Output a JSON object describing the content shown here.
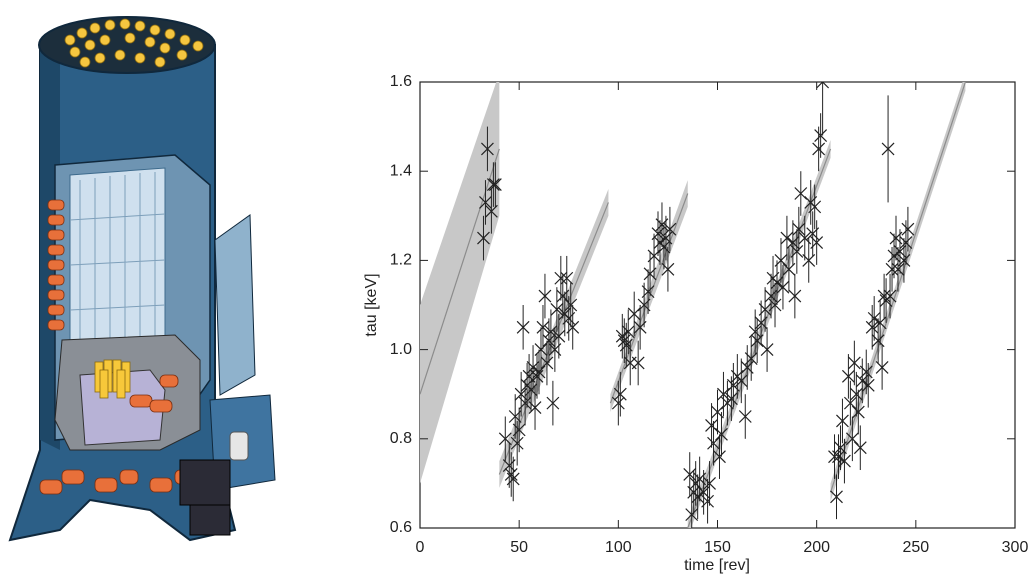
{
  "chart_data": {
    "type": "scatter",
    "xlabel": "time [rev]",
    "ylabel": "tau [keV]",
    "xlim": [
      0,
      300
    ],
    "ylim": [
      0.6,
      1.6
    ],
    "xticks": [
      0,
      50,
      100,
      150,
      200,
      250,
      300
    ],
    "yticks": [
      0.6,
      0.8,
      {
        "value": 1,
        "label": "1.0"
      },
      1.2,
      1.4,
      1.6
    ],
    "color": "#222222",
    "fit_color": "#8c8c8c",
    "band_color": "#c8c8c8",
    "series": [
      {
        "x": [
          32,
          33,
          34,
          36,
          37,
          38
        ],
        "values": [
          1.25,
          1.33,
          1.45,
          1.31,
          1.37,
          1.37
        ],
        "yerr": 0.05
      },
      {
        "x": [
          43,
          45,
          46,
          47,
          48,
          49,
          50,
          51,
          52,
          53,
          54,
          55,
          56,
          57,
          58,
          59,
          60,
          61,
          62,
          63,
          64,
          65,
          66,
          67,
          68,
          69,
          70,
          71,
          72,
          73,
          74,
          75,
          76,
          77
        ],
        "values": [
          0.8,
          0.74,
          0.72,
          0.71,
          0.85,
          0.79,
          0.82,
          0.9,
          1.05,
          0.88,
          0.92,
          0.94,
          0.91,
          0.96,
          0.87,
          0.94,
          0.95,
          1.0,
          1.05,
          1.12,
          0.97,
          1.02,
          1.04,
          0.88,
          1.0,
          1.09,
          1.03,
          1.16,
          1.12,
          1.08,
          1.16,
          1.07,
          1.1,
          1.05
        ],
        "yerr": 0.05
      },
      {
        "x": [
          100,
          101,
          102,
          103,
          104,
          105,
          106,
          108,
          110,
          111,
          113,
          115,
          116,
          118,
          120,
          121,
          122,
          123,
          124,
          125,
          126
        ],
        "values": [
          0.88,
          0.9,
          1.03,
          1.02,
          1.01,
          1.04,
          0.97,
          1.08,
          0.97,
          1.05,
          1.1,
          1.13,
          1.17,
          1.21,
          1.26,
          1.24,
          1.28,
          1.23,
          1.25,
          1.18,
          1.27
        ],
        "yerr": 0.05
      },
      {
        "x": [
          136,
          137,
          138,
          139,
          140,
          141,
          143,
          145,
          146,
          147,
          148,
          150,
          151,
          152,
          153,
          155,
          157,
          158,
          160,
          162,
          164,
          165,
          167,
          169,
          170,
          172,
          174,
          175,
          177,
          178,
          179,
          180,
          182,
          183,
          185,
          186,
          188,
          189,
          190,
          191,
          192,
          194,
          196,
          197,
          198,
          199,
          200,
          201,
          202
        ],
        "values": [
          0.72,
          0.63,
          0.68,
          0.7,
          0.67,
          0.71,
          0.68,
          0.66,
          0.7,
          0.83,
          0.79,
          0.86,
          0.76,
          0.81,
          0.9,
          0.88,
          0.89,
          0.92,
          0.94,
          0.93,
          0.85,
          0.96,
          0.98,
          1.04,
          1.02,
          1.06,
          1.09,
          1.0,
          1.12,
          1.16,
          1.1,
          1.15,
          1.2,
          1.14,
          1.25,
          1.18,
          1.24,
          1.12,
          1.22,
          1.27,
          1.35,
          1.25,
          1.2,
          1.33,
          1.26,
          1.32,
          1.24,
          1.45,
          1.48
        ],
        "yerr": 0.05
      },
      {
        "x": [
          209,
          210,
          211,
          212,
          213,
          214,
          216,
          217,
          218,
          219,
          220,
          221,
          222,
          223,
          225,
          226,
          228,
          229,
          231,
          232,
          233,
          234,
          235,
          237,
          238,
          239,
          240,
          241,
          242,
          244,
          245,
          246
        ],
        "values": [
          0.76,
          0.67,
          0.76,
          0.78,
          0.84,
          0.75,
          0.94,
          0.88,
          0.8,
          0.97,
          0.9,
          0.86,
          0.78,
          0.93,
          0.95,
          0.92,
          1.05,
          1.07,
          1.02,
          1.06,
          0.96,
          1.12,
          1.11,
          1.12,
          1.18,
          1.21,
          1.25,
          1.18,
          1.22,
          1.2,
          1.24,
          1.27
        ],
        "yerr": 0.05
      },
      {
        "x": [
          203,
          236
        ],
        "values": [
          1.6,
          1.45
        ],
        "yerr": 0.12
      }
    ],
    "fits": [
      {
        "x": [
          0,
          40
        ],
        "values": [
          0.9,
          1.45
        ],
        "lower": [
          0.7,
          1.3
        ],
        "upper": [
          1.1,
          1.62
        ]
      },
      {
        "x": [
          40,
          95
        ],
        "values": [
          0.72,
          1.33
        ],
        "lower": [
          0.69,
          1.3
        ],
        "upper": [
          0.75,
          1.36
        ]
      },
      {
        "x": [
          96,
          135
        ],
        "values": [
          0.88,
          1.35
        ],
        "lower": [
          0.86,
          1.32
        ],
        "upper": [
          0.9,
          1.38
        ]
      },
      {
        "x": [
          135,
          207
        ],
        "values": [
          0.6,
          1.45
        ],
        "lower": [
          0.58,
          1.43
        ],
        "upper": [
          0.62,
          1.47
        ]
      },
      {
        "x": [
          207,
          275
        ],
        "values": [
          0.68,
          1.6
        ],
        "lower": [
          0.66,
          1.58
        ],
        "upper": [
          0.7,
          1.62
        ]
      }
    ]
  }
}
